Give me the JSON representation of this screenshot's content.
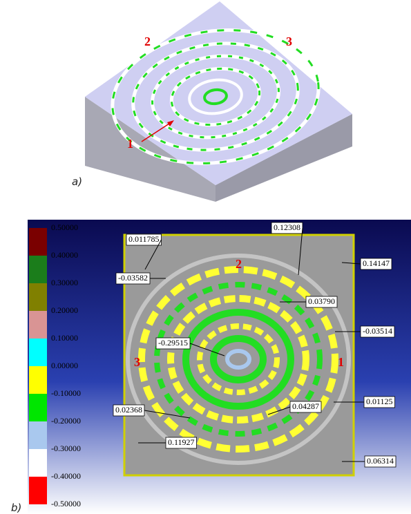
{
  "panel_a": {
    "label": "a)",
    "markers": [
      "1",
      "2",
      "3"
    ]
  },
  "panel_b": {
    "label": "b)",
    "legend": {
      "labels": [
        "0.50000",
        "0.40000",
        "0.30000",
        "0.20000",
        "0.10000",
        "0.00000",
        "-0.10000",
        "-0.20000",
        "-0.30000",
        "-0.40000",
        "-0.50000"
      ],
      "colors": [
        "#7a0000",
        "#1b7d1b",
        "#808000",
        "#d99494",
        "#00ffff",
        "#ffff00",
        "#00e600",
        "#a9c8ee",
        "#ffffff",
        "#ff0000"
      ]
    },
    "markers": [
      "2",
      "3",
      "1"
    ],
    "callouts": [
      "0.011785",
      "0.12308",
      "0.14147",
      "-0.03582",
      "0.03790",
      "-0.03514",
      "-0.29515",
      "0.02368",
      "0.04287",
      "0.01125",
      "0.11927",
      "0.06314"
    ]
  }
}
